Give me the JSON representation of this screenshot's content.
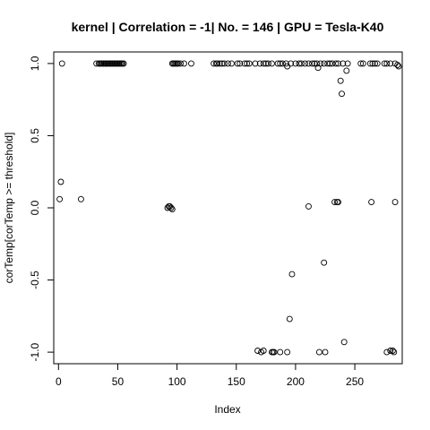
{
  "chart_data": {
    "type": "scatter",
    "title": "kernel | Correlation = -1| No. = 146 | GPU = Tesla-K40",
    "xlabel": "Index",
    "ylabel": "corTemp[corTemp >= threshold]",
    "xlim": [
      -4,
      290
    ],
    "ylim": [
      -1.08,
      1.08
    ],
    "xticks": [
      0,
      50,
      100,
      150,
      200,
      250
    ],
    "yticks": [
      -1.0,
      -0.5,
      0.0,
      0.5,
      1.0
    ],
    "ytick_labels": [
      "-1.0",
      "-0.5",
      "0.0",
      "0.5",
      "1.0"
    ],
    "grid": false,
    "legend": "none",
    "marker": "open-circle",
    "points": [
      [
        1,
        0.06
      ],
      [
        2,
        0.18
      ],
      [
        3,
        1.0
      ],
      [
        19,
        0.06
      ],
      [
        32,
        1.0
      ],
      [
        34,
        1.0
      ],
      [
        35,
        1.0
      ],
      [
        36,
        1.0
      ],
      [
        37,
        1.0
      ],
      [
        38,
        1.0
      ],
      [
        39,
        1.0
      ],
      [
        40,
        1.0
      ],
      [
        41,
        1.0
      ],
      [
        42,
        1.0
      ],
      [
        43,
        1.0
      ],
      [
        44,
        1.0
      ],
      [
        45,
        1.0
      ],
      [
        46,
        1.0
      ],
      [
        47,
        1.0
      ],
      [
        48,
        1.0
      ],
      [
        49,
        1.0
      ],
      [
        50,
        1.0
      ],
      [
        51,
        1.0
      ],
      [
        52,
        1.0
      ],
      [
        53,
        1.0
      ],
      [
        54,
        1.0
      ],
      [
        55,
        1.0
      ],
      [
        92,
        0.0
      ],
      [
        93,
        0.01
      ],
      [
        94,
        0.01
      ],
      [
        95,
        0.0
      ],
      [
        96,
        -0.01
      ],
      [
        96,
        1.0
      ],
      [
        97,
        1.0
      ],
      [
        98,
        1.0
      ],
      [
        99,
        1.0
      ],
      [
        100,
        1.0
      ],
      [
        101,
        1.0
      ],
      [
        103,
        1.0
      ],
      [
        106,
        1.0
      ],
      [
        112,
        1.0
      ],
      [
        131,
        1.0
      ],
      [
        133,
        1.0
      ],
      [
        134,
        1.0
      ],
      [
        136,
        1.0
      ],
      [
        138,
        1.0
      ],
      [
        140,
        1.0
      ],
      [
        143,
        1.0
      ],
      [
        146,
        1.0
      ],
      [
        151,
        1.0
      ],
      [
        153,
        1.0
      ],
      [
        157,
        1.0
      ],
      [
        159,
        1.0
      ],
      [
        161,
        1.0
      ],
      [
        166,
        1.0
      ],
      [
        170,
        1.0
      ],
      [
        173,
        1.0
      ],
      [
        175,
        1.0
      ],
      [
        177,
        1.0
      ],
      [
        180,
        1.0
      ],
      [
        185,
        1.0
      ],
      [
        187,
        1.0
      ],
      [
        189,
        1.0
      ],
      [
        192,
        1.0
      ],
      [
        193,
        0.98
      ],
      [
        196,
        1.0
      ],
      [
        200,
        1.0
      ],
      [
        203,
        1.0
      ],
      [
        205,
        1.0
      ],
      [
        208,
        1.0
      ],
      [
        211,
        1.0
      ],
      [
        214,
        1.0
      ],
      [
        216,
        1.0
      ],
      [
        218,
        1.0
      ],
      [
        219,
        0.97
      ],
      [
        221,
        1.0
      ],
      [
        224,
        1.0
      ],
      [
        227,
        1.0
      ],
      [
        229,
        1.0
      ],
      [
        231,
        1.0
      ],
      [
        234,
        1.0
      ],
      [
        236,
        1.0
      ],
      [
        238,
        0.88
      ],
      [
        239,
        0.79
      ],
      [
        240,
        1.0
      ],
      [
        243,
        0.95
      ],
      [
        244,
        1.0
      ],
      [
        255,
        1.0
      ],
      [
        257,
        1.0
      ],
      [
        263,
        1.0
      ],
      [
        265,
        1.0
      ],
      [
        267,
        1.0
      ],
      [
        269,
        1.0
      ],
      [
        275,
        1.0
      ],
      [
        277,
        1.0
      ],
      [
        280,
        1.0
      ],
      [
        284,
        1.0
      ],
      [
        286,
        0.99
      ],
      [
        287,
        0.98
      ],
      [
        168,
        -0.99
      ],
      [
        171,
        -1.0
      ],
      [
        173,
        -0.99
      ],
      [
        180,
        -1.0
      ],
      [
        181,
        -1.0
      ],
      [
        182,
        -1.0
      ],
      [
        187,
        -1.0
      ],
      [
        193,
        -1.0
      ],
      [
        195,
        -0.77
      ],
      [
        197,
        -0.46
      ],
      [
        211,
        0.01
      ],
      [
        220,
        -1.0
      ],
      [
        224,
        -0.38
      ],
      [
        225,
        -1.0
      ],
      [
        233,
        0.04
      ],
      [
        235,
        0.04
      ],
      [
        236,
        0.04
      ],
      [
        241,
        -0.93
      ],
      [
        264,
        0.04
      ],
      [
        277,
        -1.0
      ],
      [
        280,
        -0.99
      ],
      [
        282,
        -0.99
      ],
      [
        283,
        -1.0
      ],
      [
        284,
        0.04
      ]
    ]
  }
}
